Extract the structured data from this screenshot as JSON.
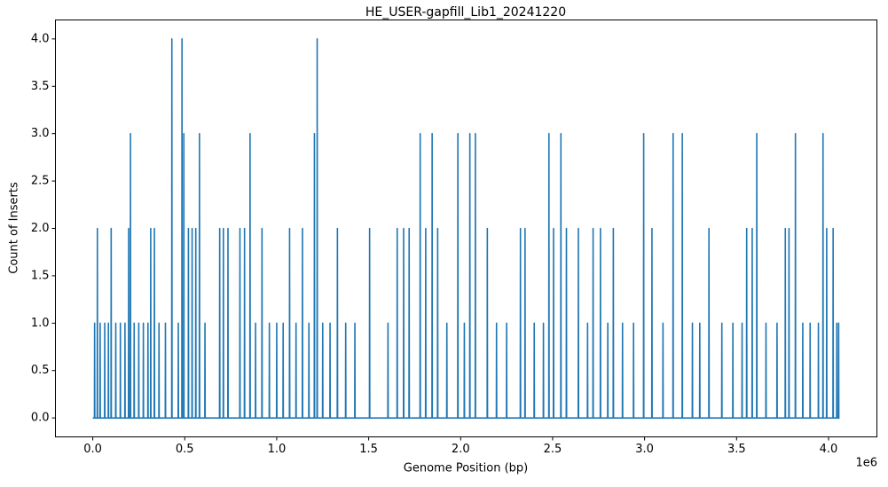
{
  "chart_data": {
    "type": "line",
    "title": "HE_USER-gapfill_Lib1_20241220",
    "x_label": "Genome Position (bp)",
    "y_label": "Count of Inserts",
    "x_offset_label": "1e6",
    "xlim": [
      -203000,
      4263000
    ],
    "ylim": [
      -0.2,
      4.2
    ],
    "xticks": [
      {
        "value": 0,
        "label": "0.0"
      },
      {
        "value": 500000,
        "label": "0.5"
      },
      {
        "value": 1000000,
        "label": "1.0"
      },
      {
        "value": 1500000,
        "label": "1.5"
      },
      {
        "value": 2000000,
        "label": "2.0"
      },
      {
        "value": 2500000,
        "label": "2.5"
      },
      {
        "value": 3000000,
        "label": "3.0"
      },
      {
        "value": 3500000,
        "label": "3.5"
      },
      {
        "value": 4000000,
        "label": "4.0"
      }
    ],
    "yticks": [
      {
        "value": 0,
        "label": "0.0"
      },
      {
        "value": 0.5,
        "label": "0.5"
      },
      {
        "value": 1,
        "label": "1.0"
      },
      {
        "value": 1.5,
        "label": "1.5"
      },
      {
        "value": 2,
        "label": "2.0"
      },
      {
        "value": 2.5,
        "label": "2.5"
      },
      {
        "value": 3,
        "label": "3.0"
      },
      {
        "value": 3.5,
        "label": "3.5"
      },
      {
        "value": 4,
        "label": "4.0"
      }
    ],
    "grid": false,
    "x": [
      0,
      9000,
      10000,
      11000,
      24000,
      25000,
      26000,
      39000,
      40000,
      41000,
      64000,
      65000,
      66000,
      84000,
      85000,
      86000,
      99000,
      100000,
      101000,
      124000,
      125000,
      126000,
      149000,
      150000,
      151000,
      174000,
      175000,
      176000,
      194000,
      195000,
      196000,
      204000,
      205000,
      206000,
      224000,
      225000,
      226000,
      249000,
      250000,
      251000,
      274000,
      275000,
      276000,
      299000,
      300000,
      301000,
      314000,
      315000,
      316000,
      334000,
      335000,
      336000,
      359000,
      360000,
      361000,
      394000,
      395000,
      396000,
      429000,
      430000,
      431000,
      464000,
      465000,
      466000,
      484000,
      485000,
      486000,
      494000,
      495000,
      496000,
      519000,
      520000,
      521000,
      539000,
      540000,
      541000,
      559000,
      560000,
      561000,
      579000,
      580000,
      581000,
      609000,
      610000,
      611000,
      689000,
      690000,
      691000,
      709000,
      710000,
      711000,
      734000,
      735000,
      736000,
      799000,
      800000,
      801000,
      824000,
      825000,
      826000,
      854000,
      855000,
      856000,
      884000,
      885000,
      886000,
      919000,
      920000,
      921000,
      959000,
      960000,
      961000,
      999000,
      1000000,
      1001000,
      1034000,
      1035000,
      1036000,
      1069000,
      1070000,
      1071000,
      1104000,
      1105000,
      1106000,
      1139000,
      1140000,
      1141000,
      1174000,
      1175000,
      1176000,
      1204000,
      1205000,
      1206000,
      1219000,
      1220000,
      1221000,
      1249000,
      1250000,
      1251000,
      1289000,
      1290000,
      1291000,
      1329000,
      1330000,
      1331000,
      1374000,
      1375000,
      1376000,
      1424000,
      1425000,
      1426000,
      1504000,
      1505000,
      1506000,
      1604000,
      1605000,
      1606000,
      1654000,
      1655000,
      1656000,
      1689000,
      1690000,
      1691000,
      1719000,
      1720000,
      1721000,
      1779000,
      1780000,
      1781000,
      1809000,
      1810000,
      1811000,
      1844000,
      1845000,
      1846000,
      1874000,
      1875000,
      1876000,
      1924000,
      1925000,
      1926000,
      1984000,
      1985000,
      1986000,
      2019000,
      2020000,
      2021000,
      2049000,
      2050000,
      2051000,
      2079000,
      2080000,
      2081000,
      2144000,
      2145000,
      2146000,
      2194000,
      2195000,
      2196000,
      2249000,
      2250000,
      2251000,
      2324000,
      2325000,
      2326000,
      2349000,
      2350000,
      2351000,
      2399000,
      2400000,
      2401000,
      2449000,
      2450000,
      2451000,
      2479000,
      2480000,
      2481000,
      2504000,
      2505000,
      2506000,
      2544000,
      2545000,
      2546000,
      2574000,
      2575000,
      2576000,
      2639000,
      2640000,
      2641000,
      2689000,
      2690000,
      2691000,
      2719000,
      2720000,
      2721000,
      2759000,
      2760000,
      2761000,
      2799000,
      2800000,
      2801000,
      2829000,
      2830000,
      2831000,
      2879000,
      2880000,
      2881000,
      2939000,
      2940000,
      2941000,
      2994000,
      2995000,
      2996000,
      3039000,
      3040000,
      3041000,
      3099000,
      3100000,
      3101000,
      3154000,
      3155000,
      3156000,
      3204000,
      3205000,
      3206000,
      3259000,
      3260000,
      3261000,
      3299000,
      3300000,
      3301000,
      3349000,
      3350000,
      3351000,
      3419000,
      3420000,
      3421000,
      3479000,
      3480000,
      3481000,
      3529000,
      3530000,
      3531000,
      3554000,
      3555000,
      3556000,
      3584000,
      3585000,
      3586000,
      3609000,
      3610000,
      3611000,
      3659000,
      3660000,
      3661000,
      3719000,
      3720000,
      3721000,
      3764000,
      3765000,
      3766000,
      3784000,
      3785000,
      3786000,
      3819000,
      3820000,
      3821000,
      3859000,
      3860000,
      3861000,
      3899000,
      3900000,
      3901000,
      3944000,
      3945000,
      3946000,
      3969000,
      3970000,
      3971000,
      3989000,
      3990000,
      3991000,
      4024000,
      4025000,
      4026000,
      4044000,
      4045000,
      4046000,
      4054000,
      4055000,
      4056000,
      4060000
    ],
    "series": [
      {
        "color": "#1f77b4",
        "values": [
          0,
          0,
          1,
          0,
          0,
          2,
          0,
          0,
          1,
          0,
          0,
          1,
          0,
          0,
          1,
          0,
          0,
          2,
          0,
          0,
          1,
          0,
          0,
          1,
          0,
          0,
          1,
          0,
          0,
          2,
          0,
          0,
          3,
          0,
          0,
          1,
          0,
          0,
          1,
          0,
          0,
          1,
          0,
          0,
          1,
          0,
          0,
          2,
          0,
          0,
          2,
          0,
          0,
          1,
          0,
          0,
          1,
          0,
          0,
          4,
          0,
          0,
          1,
          0,
          0,
          4,
          0,
          0,
          3,
          0,
          0,
          2,
          0,
          0,
          2,
          0,
          0,
          2,
          0,
          0,
          3,
          0,
          0,
          1,
          0,
          0,
          2,
          0,
          0,
          2,
          0,
          0,
          2,
          0,
          0,
          2,
          0,
          0,
          2,
          0,
          0,
          3,
          0,
          0,
          1,
          0,
          0,
          2,
          0,
          0,
          1,
          0,
          0,
          1,
          0,
          0,
          1,
          0,
          0,
          2,
          0,
          0,
          1,
          0,
          0,
          2,
          0,
          0,
          1,
          0,
          0,
          3,
          0,
          0,
          4,
          0,
          0,
          1,
          0,
          0,
          1,
          0,
          0,
          2,
          0,
          0,
          1,
          0,
          0,
          1,
          0,
          0,
          2,
          0,
          0,
          1,
          0,
          0,
          2,
          0,
          0,
          2,
          0,
          0,
          2,
          0,
          0,
          3,
          0,
          0,
          2,
          0,
          0,
          3,
          0,
          0,
          2,
          0,
          0,
          1,
          0,
          0,
          3,
          0,
          0,
          1,
          0,
          0,
          3,
          0,
          0,
          3,
          0,
          0,
          2,
          0,
          0,
          1,
          0,
          0,
          1,
          0,
          0,
          2,
          0,
          0,
          2,
          0,
          0,
          1,
          0,
          0,
          1,
          0,
          0,
          3,
          0,
          0,
          2,
          0,
          0,
          3,
          0,
          0,
          2,
          0,
          0,
          2,
          0,
          0,
          1,
          0,
          0,
          2,
          0,
          0,
          2,
          0,
          0,
          1,
          0,
          0,
          2,
          0,
          0,
          1,
          0,
          0,
          1,
          0,
          0,
          3,
          0,
          0,
          2,
          0,
          0,
          1,
          0,
          0,
          3,
          0,
          0,
          3,
          0,
          0,
          1,
          0,
          0,
          1,
          0,
          0,
          2,
          0,
          0,
          1,
          0,
          0,
          1,
          0,
          0,
          1,
          0,
          0,
          2,
          0,
          0,
          2,
          0,
          0,
          3,
          0,
          0,
          1,
          0,
          0,
          1,
          0,
          0,
          2,
          0,
          0,
          2,
          0,
          0,
          3,
          0,
          0,
          1,
          0,
          0,
          1,
          0,
          0,
          1,
          0,
          0,
          3,
          0,
          0,
          2,
          0,
          0,
          2,
          0,
          0,
          1,
          0,
          0,
          1,
          0,
          0
        ]
      }
    ]
  }
}
